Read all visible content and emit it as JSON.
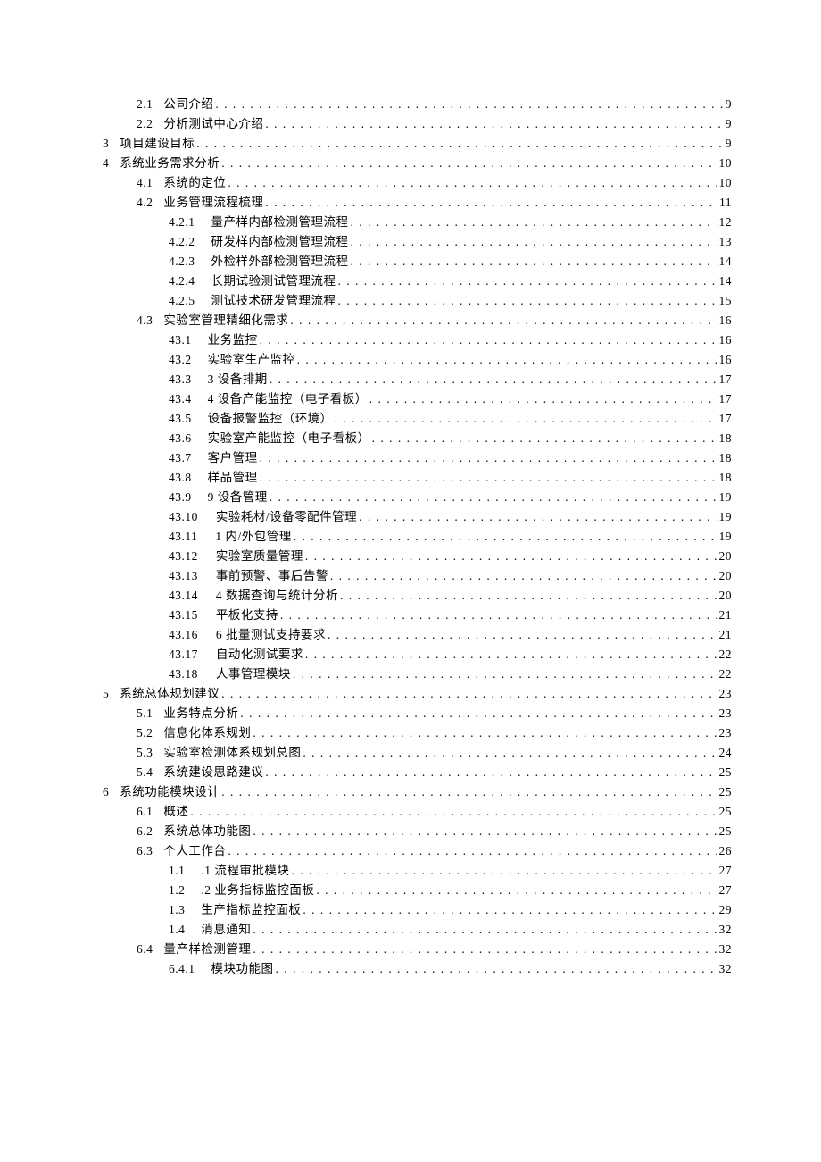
{
  "toc": {
    "dots_char": ".",
    "font_size": 13.5,
    "line_height": 1.0,
    "text_color": "#000000",
    "background_color": "#ffffff",
    "entries": [
      {
        "level": 2,
        "num": "2.1",
        "title": "公司介绍",
        "page": "9"
      },
      {
        "level": 2,
        "num": "2.2",
        "title": "分析测试中心介绍",
        "page": "9"
      },
      {
        "level": 1,
        "num": "3",
        "title": "项目建设目标",
        "page": "9"
      },
      {
        "level": 1,
        "num": "4",
        "title": "系统业务需求分析",
        "page": "10"
      },
      {
        "level": 2,
        "num": "4.1",
        "title": "系统的定位",
        "page": "10"
      },
      {
        "level": 2,
        "num": "4.2",
        "title": "业务管理流程梳理",
        "page": "11"
      },
      {
        "level": 3,
        "num": "4.2.1",
        "title": "量产样内部检测管理流程",
        "page": "12"
      },
      {
        "level": 3,
        "num": "4.2.2",
        "title": "研发样内部检测管理流程",
        "page": "13"
      },
      {
        "level": 3,
        "num": "4.2.3",
        "title": "外检样外部检测管理流程",
        "page": "14"
      },
      {
        "level": 3,
        "num": "4.2.4",
        "title": "长期试验测试管理流程",
        "page": "14"
      },
      {
        "level": 3,
        "num": "4.2.5",
        "title": "测试技术研发管理流程",
        "page": "15"
      },
      {
        "level": 2,
        "num": "4.3",
        "title": "实验室管理精细化需求",
        "page": "16"
      },
      {
        "level": 4,
        "num": "43.1",
        "title": "业务监控",
        "page": "16"
      },
      {
        "level": 4,
        "num": "43.2",
        "title": "实验室生产监控",
        "page": "16"
      },
      {
        "level": 4,
        "num": "43.3",
        "title": "3 设备排期",
        "page": "17"
      },
      {
        "level": 4,
        "num": "43.4",
        "title": "4 设备产能监控（电子看板）",
        "page": "17"
      },
      {
        "level": 4,
        "num": "43.5",
        "title": "设备报警监控（环境）",
        "page": "17"
      },
      {
        "level": 4,
        "num": "43.6",
        "title": "实验室产能监控（电子看板）",
        "page": "18"
      },
      {
        "level": 4,
        "num": "43.7",
        "title": "客户管理",
        "page": "18"
      },
      {
        "level": 4,
        "num": "43.8",
        "title": "样品管理",
        "page": "18"
      },
      {
        "level": 4,
        "num": "43.9",
        "title": "9 设备管理",
        "page": "19"
      },
      {
        "level": 4,
        "num": "43.10",
        "title": "实验耗材/设备零配件管理",
        "page": "19",
        "wide": true
      },
      {
        "level": 4,
        "num": "43.11",
        "title": "1 内/外包管理",
        "page": "19",
        "wide": true
      },
      {
        "level": 4,
        "num": "43.12",
        "title": "实验室质量管理",
        "page": "20",
        "wide": true
      },
      {
        "level": 4,
        "num": "43.13",
        "title": "事前预警、事后告警",
        "page": "20",
        "wide": true
      },
      {
        "level": 4,
        "num": "43.14",
        "title": "4 数据查询与统计分析",
        "page": "20",
        "wide": true
      },
      {
        "level": 4,
        "num": "43.15",
        "title": "平板化支持",
        "page": "21",
        "wide": true
      },
      {
        "level": 4,
        "num": "43.16",
        "title": "6 批量测试支持要求",
        "page": "21",
        "wide": true
      },
      {
        "level": 4,
        "num": "43.17",
        "title": "自动化测试要求",
        "page": "22",
        "wide": true
      },
      {
        "level": 4,
        "num": "43.18",
        "title": "人事管理模块",
        "page": "22",
        "wide": true
      },
      {
        "level": 1,
        "num": "5",
        "title": "系统总体规划建议",
        "page": "23"
      },
      {
        "level": 2,
        "num": "5.1",
        "title": "业务特点分析",
        "page": "23"
      },
      {
        "level": 2,
        "num": "5.2",
        "title": "信息化体系规划",
        "page": "23"
      },
      {
        "level": 2,
        "num": "5.3",
        "title": "实验室检测体系规划总图",
        "page": "24"
      },
      {
        "level": 2,
        "num": "5.4",
        "title": "系统建设思路建议",
        "page": "25"
      },
      {
        "level": 1,
        "num": "6",
        "title": "系统功能模块设计",
        "page": "25"
      },
      {
        "level": 2,
        "num": "6.1",
        "title": "概述",
        "page": "25"
      },
      {
        "level": 2,
        "num": "6.2",
        "title": "系统总体功能图",
        "page": "25"
      },
      {
        "level": 2,
        "num": "6.3",
        "title": "个人工作台",
        "page": "26"
      },
      {
        "level": 3,
        "num": "1.1",
        "title": ".1 流程审批模块",
        "page": "27"
      },
      {
        "level": 3,
        "num": "1.2",
        "title": ".2 业务指标监控面板",
        "page": "27"
      },
      {
        "level": 3,
        "num": "1.3",
        "title": "生产指标监控面板",
        "page": "29"
      },
      {
        "level": 3,
        "num": "1.4",
        "title": "消息通知",
        "page": "32"
      },
      {
        "level": 2,
        "num": "6.4",
        "title": "量产样检测管理",
        "page": "32"
      },
      {
        "level": 3,
        "num": "6.4.1",
        "title": "模块功能图",
        "page": "32"
      }
    ]
  }
}
